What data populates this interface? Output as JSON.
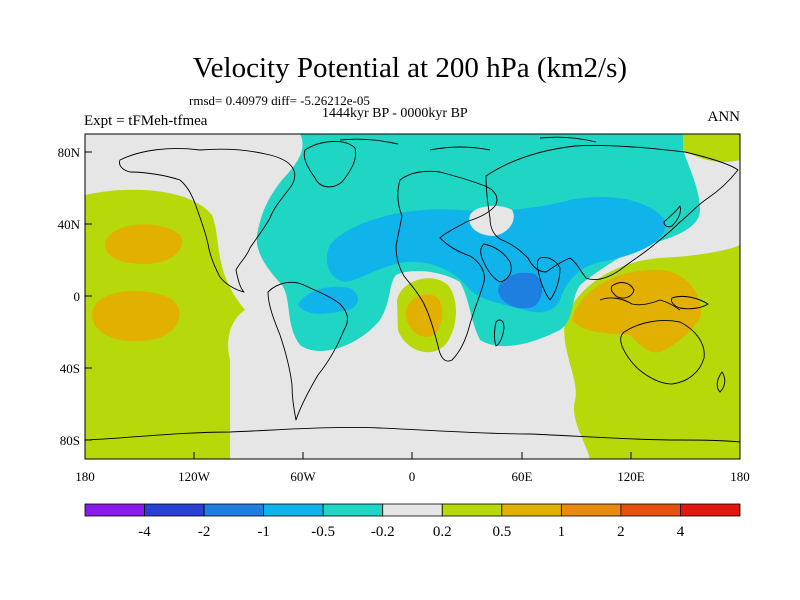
{
  "header": {
    "title": "Velocity Potential at 200 hPa (km2/s)",
    "stats": "rmsd= 0.40979 diff= -5.26212e-05",
    "period": "1444kyr BP - 0000kyr BP",
    "experiment": "Expt = tFMeh-tfmea",
    "season": "ANN"
  },
  "axes": {
    "lat_labels": [
      "80N",
      "40N",
      "0",
      "40S",
      "80S"
    ],
    "lon_labels": [
      "180",
      "120W",
      "60W",
      "0",
      "60E",
      "120E",
      "180"
    ]
  },
  "colorbar": {
    "labels": [
      "-4",
      "-2",
      "-1",
      "-0.5",
      "-0.2",
      "0.2",
      "0.5",
      "1",
      "2",
      "4"
    ],
    "colors": [
      "#8a1aeb",
      "#2a3fd4",
      "#1f7fe0",
      "#11b4ea",
      "#1fd6c4",
      "#e6e6e6",
      "#b7d90a",
      "#e1b000",
      "#e88a0c",
      "#e6520e",
      "#e1170d"
    ]
  },
  "palette": {
    "ocean_bg": "#e6e6e6",
    "cyan": "#1fd6c4",
    "light_blue": "#11b4ea",
    "blue": "#1f7fe0",
    "yellow_green": "#b7d90a",
    "orange": "#e1b000",
    "dark_orange": "#e88a0c",
    "coast": "#000000"
  }
}
